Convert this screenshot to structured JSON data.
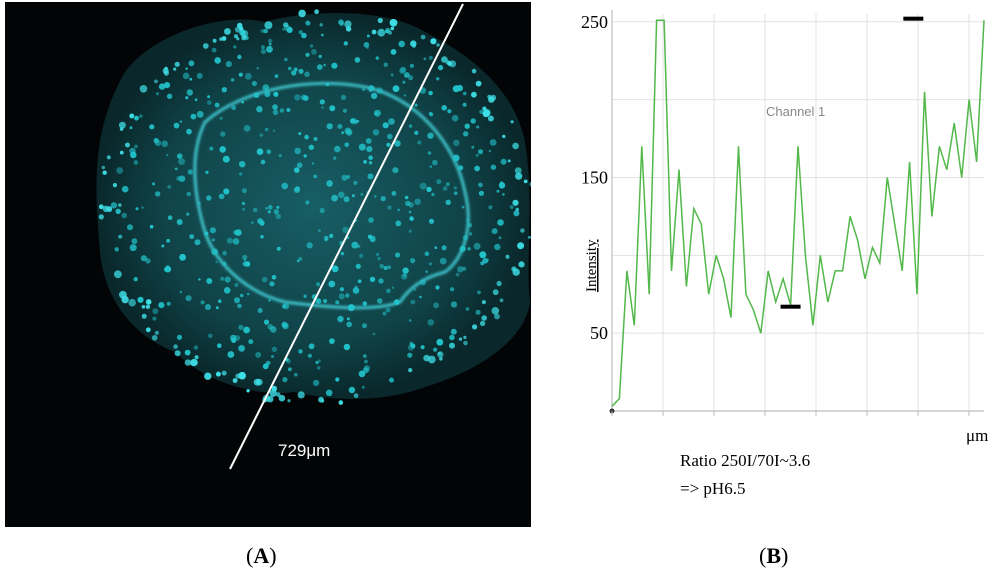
{
  "panelA": {
    "scale_label": "729μm",
    "panel_label": "A"
  },
  "panelB": {
    "panel_label": "B",
    "annotation_line1": "Ratio 250I/70I~3.6",
    "annotation_line2": "=> pH6.5"
  },
  "colors": {
    "cell": "#22c4cc",
    "line": "#52b84a",
    "grid": "#e2e2e2"
  },
  "chart_data": {
    "type": "line",
    "title": "",
    "series_label": "Channel 1",
    "ylabel": "Intensity",
    "xlabel": "μm",
    "ylim": [
      0,
      255
    ],
    "yticks": [
      50,
      150,
      250
    ],
    "x": [
      0,
      2,
      4,
      6,
      8,
      10,
      12,
      14,
      16,
      18,
      20,
      22,
      24,
      26,
      28,
      30,
      32,
      34,
      36,
      38,
      40,
      42,
      44,
      46,
      48,
      50,
      52,
      54,
      56,
      58,
      60,
      62,
      64,
      66,
      68,
      70,
      72,
      74,
      76,
      78,
      80,
      82,
      84,
      86,
      88,
      90,
      92,
      94,
      96,
      98,
      100
    ],
    "y": [
      3,
      8,
      90,
      55,
      170,
      75,
      251,
      251,
      90,
      155,
      80,
      130,
      120,
      75,
      100,
      85,
      60,
      170,
      75,
      65,
      50,
      90,
      70,
      85,
      68,
      170,
      100,
      55,
      100,
      70,
      90,
      90,
      125,
      110,
      85,
      105,
      95,
      150,
      120,
      90,
      160,
      75,
      205,
      125,
      170,
      155,
      185,
      150,
      200,
      160,
      251
    ],
    "markers": [
      {
        "x": 48,
        "y": 67
      },
      {
        "x": 81,
        "y": 252
      }
    ]
  }
}
